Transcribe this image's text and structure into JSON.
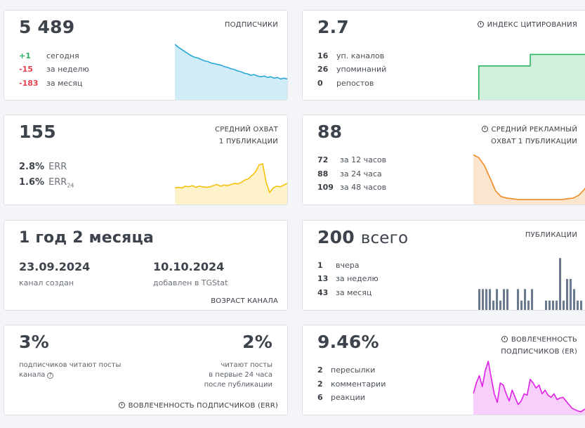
{
  "subscribers": {
    "value": "5 489",
    "label": "ПОДПИСЧИКИ",
    "rows": [
      {
        "num": "+1",
        "text": "сегодня",
        "tone": "green"
      },
      {
        "num": "-15",
        "text": "за неделю",
        "tone": "red"
      },
      {
        "num": "-183",
        "text": "за месяц",
        "tone": "red"
      }
    ],
    "series": [
      78,
      74,
      71,
      68,
      65,
      62,
      60,
      59,
      57,
      55,
      54,
      52,
      51,
      50,
      49,
      47,
      46,
      44,
      43,
      41,
      40,
      38,
      37,
      35,
      36,
      34,
      33,
      34,
      32,
      33,
      31,
      32,
      30,
      31,
      30
    ],
    "color": "#29a8d6"
  },
  "citation": {
    "value": "2.7",
    "label": "ИНДЕКС ЦИТИРОВАНИЯ",
    "rows": [
      {
        "num": "16",
        "text": "уп. каналов"
      },
      {
        "num": "26",
        "text": "упоминаний"
      },
      {
        "num": "0",
        "text": "репостов"
      }
    ],
    "series": [
      0,
      0,
      60,
      60,
      60,
      60,
      60,
      60,
      60,
      60,
      60,
      60,
      60,
      60,
      60,
      60,
      60,
      60,
      60,
      60,
      60,
      80,
      80,
      80,
      80,
      80,
      80,
      80,
      80,
      80,
      80,
      80,
      80,
      80,
      80,
      80,
      80,
      80,
      80,
      80,
      80,
      80,
      80,
      80
    ],
    "color": "#2cb562"
  },
  "reach": {
    "value": "155",
    "label_line1": "СРЕДНИЙ ОХВАТ",
    "label_line2": "1 ПУБЛИКАЦИИ",
    "err_value": "2.8%",
    "err_label": "ERR",
    "err24_value": "1.6%",
    "err24_label": "ERR",
    "err24_sub": "24",
    "series": [
      30,
      31,
      30,
      33,
      32,
      34,
      31,
      33,
      32,
      31,
      32,
      34,
      36,
      33,
      35,
      34,
      36,
      38,
      37,
      40,
      44,
      46,
      52,
      58,
      70,
      72,
      40,
      22,
      30,
      33,
      32,
      35,
      38
    ],
    "color": "#f4c20d"
  },
  "ad_reach": {
    "value": "88",
    "label_line1": "СРЕДНИЙ РЕКЛАМНЫЙ",
    "label_line2": "ОХВАТ 1 ПУБЛИКАЦИИ",
    "rows": [
      {
        "num": "72",
        "text": "за 12 часов"
      },
      {
        "num": "88",
        "text": "за 24 часа"
      },
      {
        "num": "109",
        "text": "за 48 часов"
      }
    ],
    "series": [
      70,
      66,
      55,
      38,
      20,
      12,
      10,
      9,
      8,
      8,
      8,
      8,
      8,
      8,
      8,
      8,
      8,
      9,
      10,
      14,
      22,
      34
    ],
    "color": "#f08a24"
  },
  "age": {
    "value": "1 год 2 месяца",
    "created_date": "23.09.2024",
    "created_label": "канал создан",
    "added_date": "10.10.2024",
    "added_label": "добавлен в TGStat",
    "footer": "ВОЗРАСТ КАНАЛА"
  },
  "publications": {
    "value": "200",
    "value_suffix": "всего",
    "label": "ПУБЛИКАЦИИ",
    "rows": [
      {
        "num": "1",
        "text": "вчера"
      },
      {
        "num": "13",
        "text": "за неделю"
      },
      {
        "num": "43",
        "text": "за месяц"
      }
    ],
    "bars": [
      30,
      30,
      30,
      30,
      14,
      30,
      14,
      30,
      30,
      0,
      0,
      30,
      14,
      30,
      14,
      30,
      0,
      0,
      0,
      14,
      14,
      14,
      14,
      73,
      14,
      44,
      44,
      30,
      14,
      14
    ],
    "color": "#6b7a8c"
  },
  "engagement": {
    "read_value": "3%",
    "read_text_line1": "подписчиков читают посты",
    "read_text_line2": "канала",
    "read24_value": "2%",
    "read24_text_line1": "читают посты",
    "read24_text_line2": "в первые 24 часа",
    "read24_text_line3": "после публикации",
    "footer": "ВОВЛЕЧЕННОСТЬ ПОДПИСЧИКОВ (ERR)"
  },
  "er": {
    "value": "9.46%",
    "label_line1": "ВОВЛЕЧЕННОСТЬ",
    "label_line2": "ПОДПИСЧИКОВ (ER)",
    "rows": [
      {
        "num": "2",
        "text": "пересылки"
      },
      {
        "num": "2",
        "text": "комментарии"
      },
      {
        "num": "6",
        "text": "реакции"
      }
    ],
    "series": [
      30,
      45,
      55,
      40,
      62,
      75,
      52,
      30,
      18,
      45,
      42,
      30,
      20,
      35,
      25,
      15,
      20,
      30,
      28,
      50,
      45,
      38,
      42,
      30,
      35,
      28,
      25,
      30,
      22,
      24,
      25,
      20,
      15,
      10,
      8,
      6,
      5,
      8,
      10,
      12
    ],
    "color": "#e020e8"
  }
}
